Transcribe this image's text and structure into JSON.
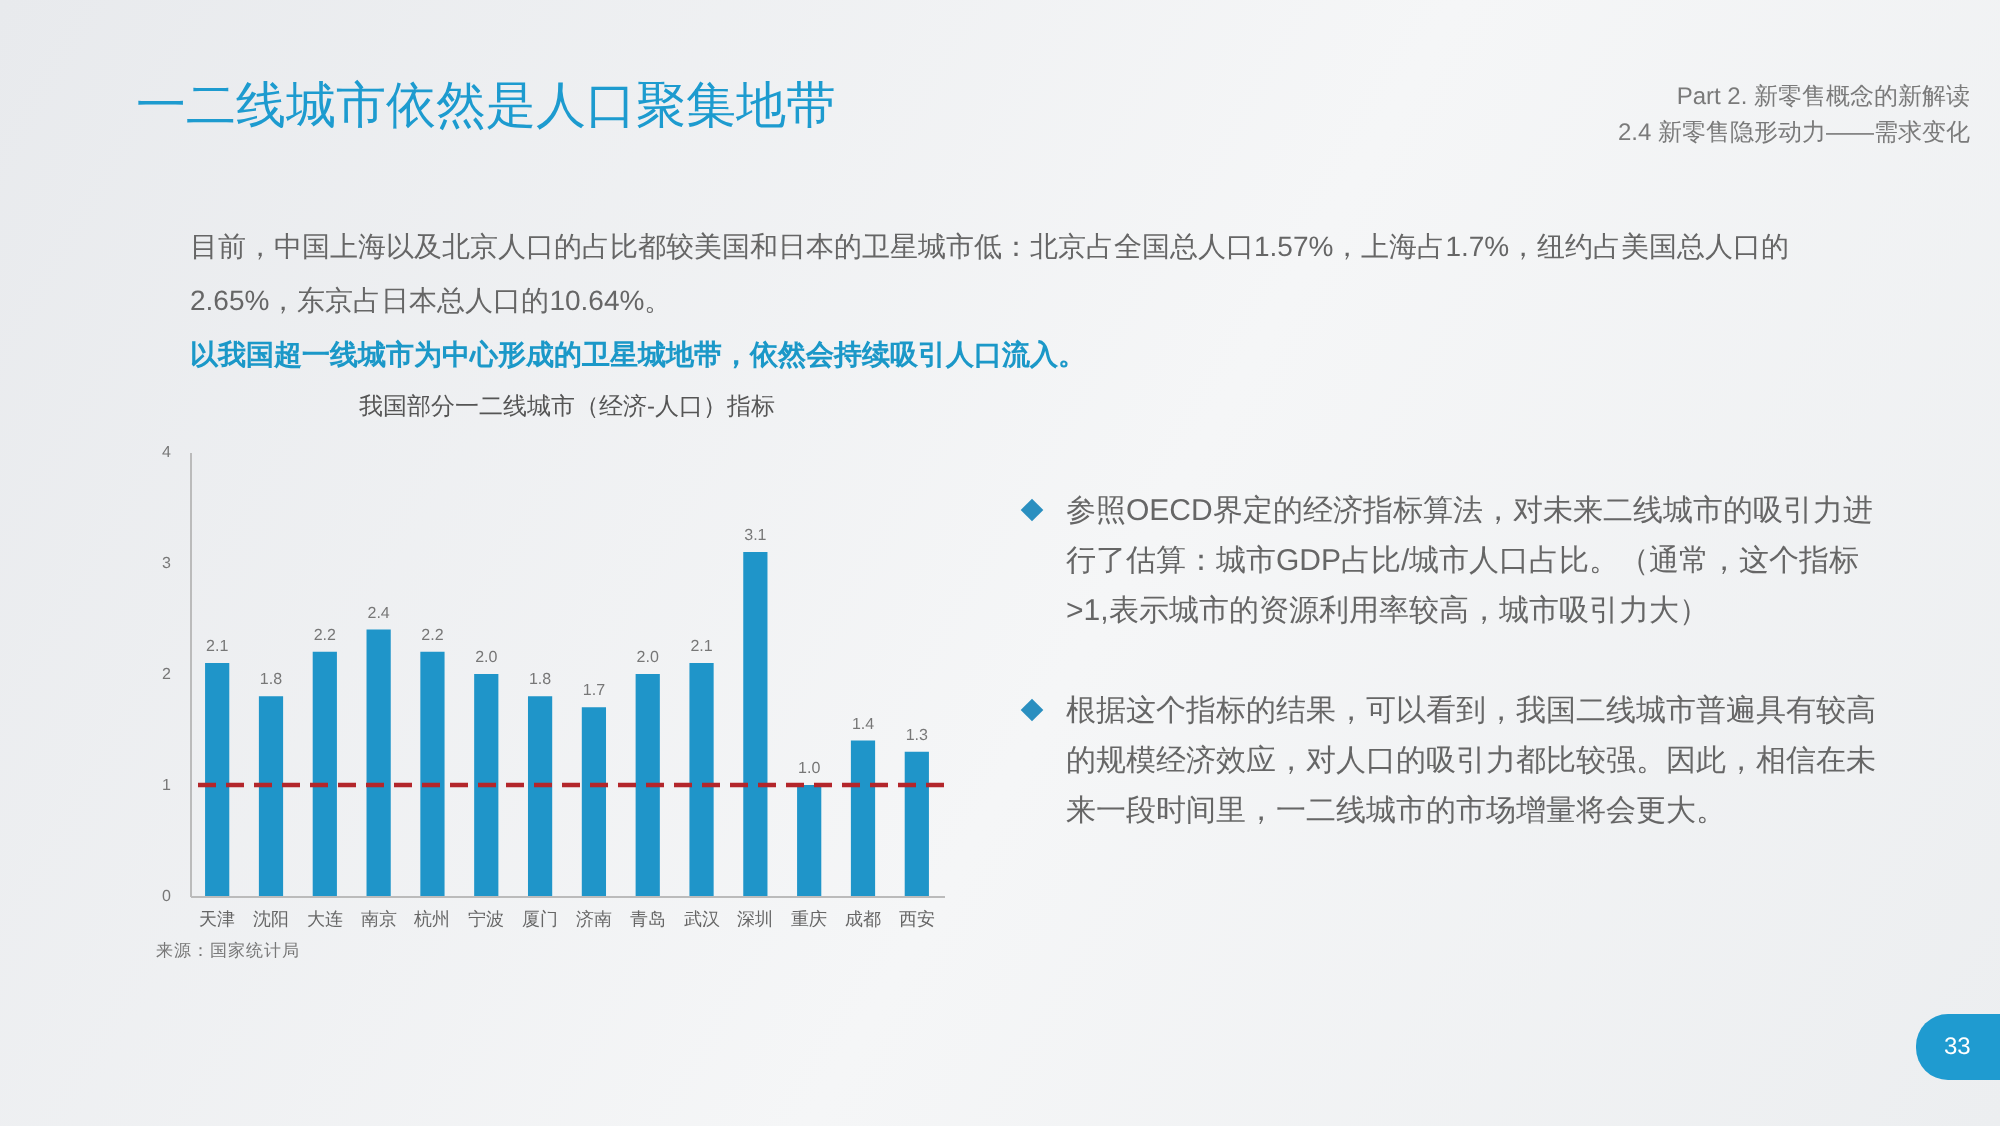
{
  "chart_data": {
    "type": "bar",
    "title": "一二线城市依然是人口聚集地带",
    "subtitle": "我国部分一二线城市（经济-人口）指标",
    "categories": [
      "天津",
      "沈阳",
      "大连",
      "南京",
      "杭州",
      "宁波",
      "厦门",
      "济南",
      "青岛",
      "武汉",
      "深圳",
      "重庆",
      "成都",
      "西安"
    ],
    "values": [
      2.1,
      1.8,
      2.2,
      2.4,
      2.2,
      2.0,
      1.8,
      1.7,
      2.0,
      2.1,
      3.1,
      1.0,
      1.4,
      1.3
    ],
    "value_labels": [
      "2.1",
      "1.8",
      "2.2",
      "2.4",
      "2.2",
      "2.0",
      "1.8",
      "1.7",
      "2.0",
      "2.1",
      "3.1",
      "1.0",
      "1.4",
      "1.3"
    ],
    "color": "#1f95c9",
    "ylim": [
      0,
      4
    ],
    "yticks": [
      0,
      1,
      2,
      3,
      4
    ],
    "ref_lines": [
      {
        "axis": "y",
        "value": 1,
        "color": "#b3262b",
        "line_style": "dashed"
      }
    ],
    "annotations": [
      "Part 2. 新零售概念的新解读",
      "2.4 新零售隐形动力——需求变化",
      "目前，中国上海以及北京人口的占比都较美国和日本的卫星城市低：北京占全国总人口1.57%，上海占1.7%，纽约占美国总人口的2.65%，东京占日本总人口的10.64%。",
      "以我国超一线城市为中心形成的卫星城地带，依然会持续吸引人口流入。",
      "参照OECD界定的经济指标算法，对未来二线城市的吸引力进行了估算：城市GDP占比/城市人口占比。（通常，这个指标>1,表示城市的资源利用率较高，城市吸引力大）",
      "根据这个指标的结果，可以看到，我国二线城市普遍具有较高的规模经济效应，对人口的吸引力都比较强。因此，相信在未来一段时间里，一二线城市的市场增量将会更大。",
      "来源：国家统计局",
      "33"
    ]
  }
}
